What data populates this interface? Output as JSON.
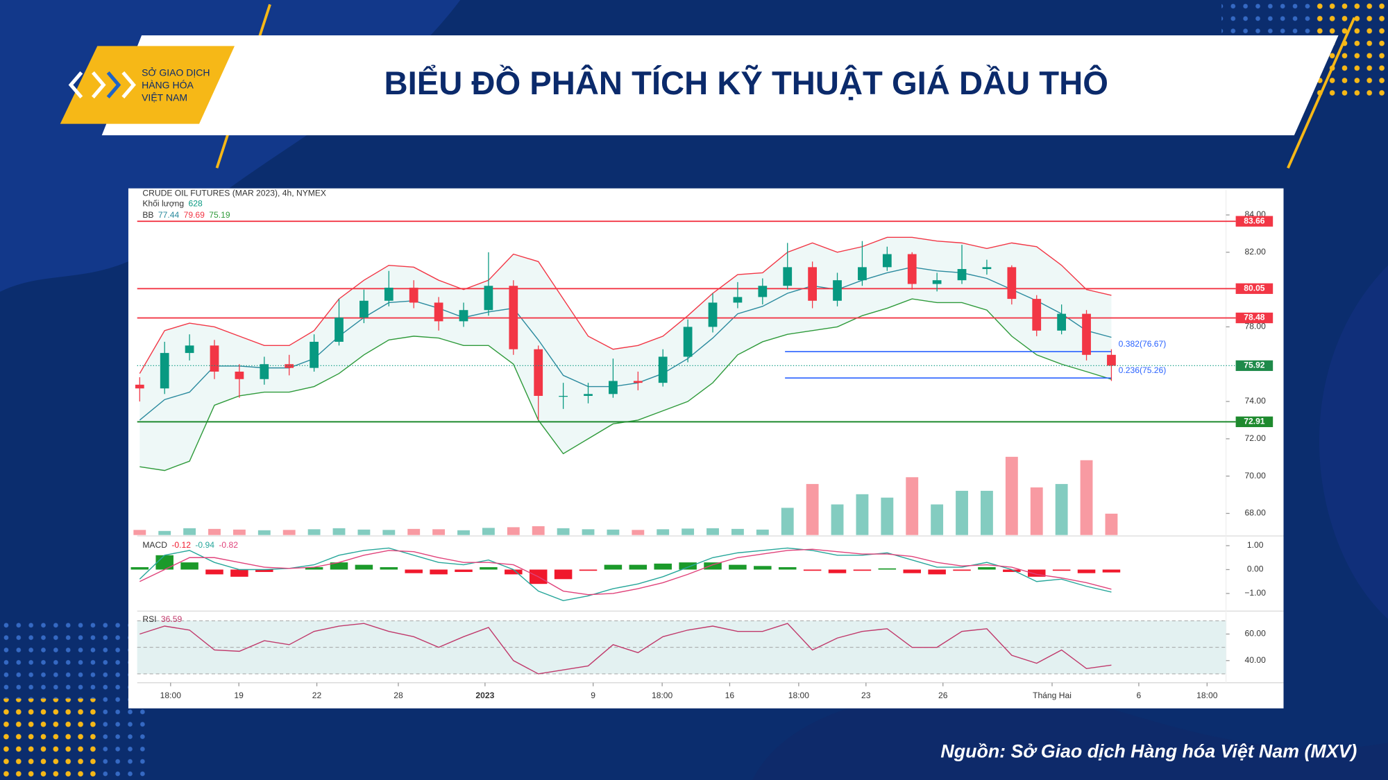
{
  "header": {
    "logo_lines": [
      "SỞ GIAO DỊCH",
      "HÀNG HÓA",
      "VIỆT NAM"
    ],
    "title": "BIỂU ĐỒ PHÂN TÍCH KỸ THUẬT GIÁ DẦU THÔ"
  },
  "footer": {
    "source": "Nguồn: Sở Giao dịch Hàng hóa Việt Nam (MXV)"
  },
  "chart_data": {
    "type": "candlestick",
    "title": "CRUDE OIL FUTURES (MAR 2023), 4h, NYMEX",
    "up_color": "#089981",
    "down_color": "#f23645",
    "xlim": [
      -0.1,
      43.6
    ],
    "xticks": [
      {
        "value": 1.24,
        "label": "18:00"
      },
      {
        "value": 3.98,
        "label": "19"
      },
      {
        "value": 7.11,
        "label": "22"
      },
      {
        "value": 10.38,
        "label": "28"
      },
      {
        "value": 13.86,
        "label": "2023",
        "strong": true
      },
      {
        "value": 18.2,
        "label": "9"
      },
      {
        "value": 20.97,
        "label": "18:00"
      },
      {
        "value": 23.68,
        "label": "16"
      },
      {
        "value": 26.45,
        "label": "18:00"
      },
      {
        "value": 29.15,
        "label": "23"
      },
      {
        "value": 32.24,
        "label": "26"
      },
      {
        "value": 36.62,
        "label": "Tháng Hai"
      },
      {
        "value": 40.1,
        "label": "6"
      },
      {
        "value": 42.84,
        "label": "18:00"
      }
    ],
    "ylim": [
      66.84,
      85.33
    ],
    "yticks": [
      {
        "value": 68,
        "label": "68.00"
      },
      {
        "value": 70,
        "label": "70.00"
      },
      {
        "value": 72,
        "label": "72.00"
      },
      {
        "value": 74,
        "label": "74.00"
      },
      {
        "value": 78,
        "label": "78.00"
      },
      {
        "value": 82,
        "label": "82.00"
      },
      {
        "value": 84,
        "label": "84.00"
      }
    ],
    "open": [
      74.9,
      74.7,
      76.6,
      77.0,
      75.6,
      75.2,
      76.0,
      75.8,
      77.2,
      78.5,
      79.4,
      80.1,
      79.3,
      78.3,
      78.9,
      80.2,
      76.8,
      74.3,
      74.3,
      74.4,
      75.1,
      75.0,
      76.4,
      78.0,
      79.3,
      79.6,
      80.2,
      81.2,
      79.4,
      80.5,
      81.2,
      81.9,
      80.3,
      80.5,
      81.1,
      81.2,
      79.5,
      77.8,
      78.7,
      76.5
    ],
    "high": [
      75.3,
      77.2,
      77.6,
      77.3,
      76.0,
      76.4,
      76.5,
      77.6,
      79.5,
      80.0,
      81.0,
      80.5,
      79.6,
      79.3,
      82.0,
      80.5,
      77.0,
      75.0,
      75.0,
      76.3,
      75.6,
      76.8,
      78.4,
      79.8,
      80.4,
      80.6,
      82.5,
      81.5,
      80.9,
      82.6,
      82.3,
      82.0,
      80.9,
      82.4,
      81.6,
      81.3,
      79.7,
      79.2,
      78.9,
      76.8
    ],
    "low": [
      74.0,
      74.4,
      76.2,
      75.2,
      74.2,
      74.9,
      75.4,
      75.6,
      77.0,
      78.2,
      79.1,
      79.0,
      77.8,
      78.0,
      78.6,
      76.5,
      73.0,
      73.6,
      73.9,
      74.2,
      74.6,
      74.8,
      76.1,
      77.7,
      79.0,
      79.2,
      80.0,
      79.0,
      79.1,
      80.2,
      81.0,
      80.0,
      79.9,
      80.3,
      80.8,
      79.2,
      77.5,
      77.6,
      76.2,
      75.1
    ],
    "close": [
      74.7,
      76.6,
      77.0,
      75.6,
      75.2,
      76.0,
      75.8,
      77.2,
      78.5,
      79.4,
      80.1,
      79.3,
      78.3,
      78.9,
      80.2,
      76.8,
      74.3,
      74.3,
      74.4,
      75.1,
      75.0,
      76.4,
      78.0,
      79.3,
      79.6,
      80.2,
      81.2,
      79.4,
      80.5,
      81.2,
      81.9,
      80.3,
      80.5,
      81.1,
      81.2,
      79.5,
      77.8,
      78.7,
      76.5,
      75.92
    ],
    "last_price_color": "#1e8a4a",
    "bollinger": {
      "label": "BB",
      "upper_color": "#f23645",
      "middle_color": "#2a8a9e",
      "lower_color": "#2e9a3a",
      "fill": "#26a69a",
      "upper": [
        75.5,
        77.8,
        78.2,
        78.0,
        77.5,
        77.0,
        77.0,
        77.8,
        79.5,
        80.5,
        81.3,
        81.2,
        80.5,
        80.0,
        80.5,
        81.9,
        81.5,
        79.5,
        77.5,
        76.8,
        77.0,
        77.5,
        78.6,
        79.8,
        80.8,
        80.9,
        82.0,
        82.5,
        82.0,
        82.3,
        82.8,
        82.8,
        82.6,
        82.5,
        82.2,
        82.5,
        82.3,
        81.3,
        80.0,
        79.69
      ],
      "middle": [
        73.0,
        74.1,
        74.5,
        75.9,
        75.9,
        75.8,
        75.8,
        76.3,
        77.5,
        78.5,
        79.3,
        79.4,
        79.0,
        78.5,
        78.8,
        79.0,
        77.3,
        75.4,
        74.8,
        74.8,
        75.0,
        75.5,
        76.3,
        77.4,
        78.7,
        79.1,
        79.8,
        80.2,
        80.0,
        80.5,
        80.9,
        81.2,
        81.0,
        80.9,
        80.6,
        80.0,
        79.4,
        78.7,
        77.8,
        77.44
      ],
      "lower": [
        70.5,
        70.3,
        70.8,
        73.8,
        74.3,
        74.5,
        74.5,
        74.8,
        75.5,
        76.5,
        77.3,
        77.5,
        77.4,
        77.0,
        77.0,
        76.0,
        73.0,
        71.2,
        72.0,
        72.8,
        73.0,
        73.5,
        74.0,
        75.0,
        76.5,
        77.2,
        77.6,
        77.8,
        78.0,
        78.6,
        79.0,
        79.5,
        79.3,
        79.3,
        78.9,
        77.5,
        76.5,
        76.0,
        75.6,
        75.19
      ]
    },
    "volume": {
      "label": "Khối lượng",
      "ylim": [
        0,
        2600
      ],
      "values": [
        150,
        120,
        200,
        180,
        160,
        140,
        150,
        170,
        200,
        160,
        150,
        180,
        170,
        140,
        210,
        230,
        260,
        200,
        170,
        160,
        150,
        170,
        190,
        200,
        180,
        160,
        800,
        1500,
        900,
        1200,
        1100,
        1700,
        900,
        1300,
        1300,
        2300,
        1400,
        1500,
        2200,
        628
      ]
    },
    "levels": [
      {
        "value": 83.66,
        "color": "#f23645"
      },
      {
        "value": 80.05,
        "color": "#f23645"
      },
      {
        "value": 78.48,
        "color": "#f23645"
      },
      {
        "value": 72.91,
        "color": "#1e8a2e"
      }
    ],
    "fib": {
      "color": "#2962ff",
      "lines": [
        {
          "value": 76.67,
          "label": "0.382(76.67)"
        },
        {
          "value": 75.26,
          "label": "0.236(75.26)"
        }
      ]
    },
    "macd": {
      "label": "MACD",
      "ylim": [
        -1.7,
        1.26
      ],
      "yticks": [
        {
          "value": 1,
          "label": "1.00"
        },
        {
          "value": 0,
          "label": "0.00"
        },
        {
          "value": -1,
          "label": "−1.00"
        }
      ],
      "hist_up_color": "#1b9a2a",
      "hist_down_color": "#f0182c",
      "macd_color": "#26a69a",
      "signal_color": "#e0427a",
      "histogram": [
        0.1,
        0.6,
        0.3,
        -0.2,
        -0.3,
        -0.1,
        0.0,
        0.1,
        0.3,
        0.2,
        0.1,
        -0.15,
        -0.2,
        -0.1,
        0.1,
        -0.2,
        -0.6,
        -0.4,
        -0.05,
        0.2,
        0.2,
        0.25,
        0.3,
        0.3,
        0.2,
        0.15,
        0.1,
        -0.05,
        -0.15,
        -0.05,
        0.05,
        -0.15,
        -0.2,
        -0.05,
        0.1,
        -0.1,
        -0.3,
        -0.05,
        -0.15,
        -0.12
      ],
      "macd": [
        -0.4,
        0.6,
        0.8,
        0.3,
        0.0,
        0.0,
        0.05,
        0.2,
        0.6,
        0.8,
        0.9,
        0.6,
        0.3,
        0.2,
        0.4,
        0.0,
        -0.9,
        -1.3,
        -1.1,
        -0.8,
        -0.6,
        -0.3,
        0.1,
        0.5,
        0.7,
        0.8,
        0.9,
        0.8,
        0.6,
        0.6,
        0.7,
        0.4,
        0.1,
        0.1,
        0.3,
        0.0,
        -0.5,
        -0.4,
        -0.7,
        -0.94
      ],
      "signal": [
        -0.5,
        0.0,
        0.5,
        0.5,
        0.3,
        0.1,
        0.05,
        0.1,
        0.3,
        0.6,
        0.8,
        0.75,
        0.5,
        0.3,
        0.3,
        0.2,
        -0.3,
        -0.9,
        -1.05,
        -1.0,
        -0.8,
        -0.55,
        -0.2,
        0.2,
        0.5,
        0.65,
        0.8,
        0.85,
        0.75,
        0.65,
        0.65,
        0.55,
        0.3,
        0.15,
        0.2,
        0.1,
        -0.2,
        -0.35,
        -0.55,
        -0.82
      ]
    },
    "rsi": {
      "label": "RSI",
      "ylim": [
        26,
        73.3
      ],
      "color": "#c0396b",
      "band_color": "#e3f1f1",
      "bands": [
        30,
        50,
        70
      ],
      "yticks": [
        {
          "value": 40,
          "label": "40.00"
        },
        {
          "value": 60,
          "label": "60.00"
        }
      ],
      "values": [
        60,
        66,
        63,
        48,
        47,
        55,
        52,
        62,
        66,
        68,
        62,
        58,
        50,
        58,
        65,
        40,
        30,
        33,
        36,
        52,
        46,
        58,
        63,
        66,
        62,
        62,
        68,
        48,
        57,
        62,
        64,
        50,
        50,
        62,
        64,
        44,
        38,
        48,
        34,
        36.59
      ]
    }
  }
}
